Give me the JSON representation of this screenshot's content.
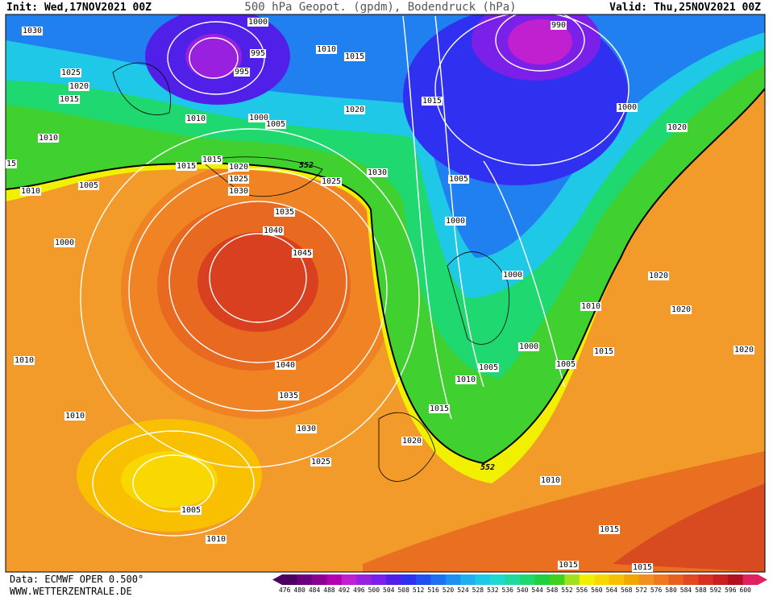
{
  "header": {
    "init": "Init: Wed,17NOV2021 00Z",
    "title": "500 hPa Geopot. (gpdm), Bodendruck (hPa)",
    "valid": "Valid: Thu,25NOV2021 00Z"
  },
  "footer": {
    "data": "Data: ECMWF OPER 0.500°",
    "site": "WWW.WETTERZENTRALE.DE"
  },
  "colorbar": {
    "values": [
      476,
      480,
      484,
      488,
      492,
      496,
      500,
      504,
      508,
      512,
      516,
      520,
      524,
      528,
      532,
      536,
      540,
      544,
      548,
      552,
      556,
      560,
      564,
      568,
      572,
      576,
      580,
      584,
      588,
      592,
      596,
      600
    ],
    "colors": [
      "#4b0060",
      "#6a0080",
      "#8a0090",
      "#b000b0",
      "#c020d0",
      "#9a20e0",
      "#7a20e8",
      "#5020e8",
      "#3030f0",
      "#2050f0",
      "#2070f0",
      "#2090f0",
      "#20b0f0",
      "#20c8e8",
      "#20d8d0",
      "#20d8a0",
      "#20d870",
      "#20d040",
      "#40d020",
      "#a0e020",
      "#f0f000",
      "#f8d800",
      "#f8c000",
      "#f0a800",
      "#f09020",
      "#f07820",
      "#e86020",
      "#e04820",
      "#d83020",
      "#c82020",
      "#b01020",
      "#e02060"
    ]
  },
  "isobar_labels": [
    1030,
    1025,
    1020,
    1015,
    1010,
    15,
    1010,
    1005,
    1000,
    1010,
    1010,
    1005,
    1010,
    1000,
    995,
    995,
    1010,
    1015,
    1010,
    1000,
    1005,
    1020,
    1015,
    1015,
    1020,
    1025,
    1030,
    1025,
    1030,
    1035,
    1040,
    1045,
    1040,
    1035,
    1030,
    1025,
    1015,
    990,
    1000,
    1020,
    1005,
    1000,
    1000,
    1010,
    1020,
    1020,
    1000,
    1015,
    1020,
    1005,
    1005,
    1010,
    1015,
    1020,
    1010,
    1015,
    1015,
    1015
  ],
  "geopotential_labels": [
    552,
    552
  ]
}
